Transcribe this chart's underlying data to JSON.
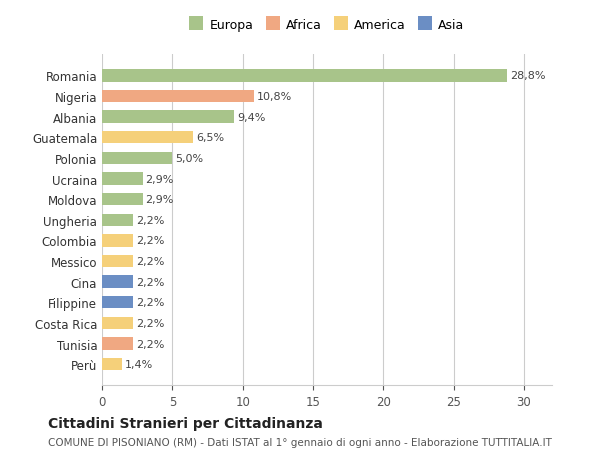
{
  "countries": [
    "Romania",
    "Nigeria",
    "Albania",
    "Guatemala",
    "Polonia",
    "Ucraina",
    "Moldova",
    "Ungheria",
    "Colombia",
    "Messico",
    "Cina",
    "Filippine",
    "Costa Rica",
    "Tunisia",
    "Perù"
  ],
  "values": [
    28.8,
    10.8,
    9.4,
    6.5,
    5.0,
    2.9,
    2.9,
    2.2,
    2.2,
    2.2,
    2.2,
    2.2,
    2.2,
    2.2,
    1.4
  ],
  "labels": [
    "28,8%",
    "10,8%",
    "9,4%",
    "6,5%",
    "5,0%",
    "2,9%",
    "2,9%",
    "2,2%",
    "2,2%",
    "2,2%",
    "2,2%",
    "2,2%",
    "2,2%",
    "2,2%",
    "1,4%"
  ],
  "continents": [
    "Europa",
    "Africa",
    "Europa",
    "America",
    "Europa",
    "Europa",
    "Europa",
    "Europa",
    "America",
    "America",
    "Asia",
    "Asia",
    "America",
    "Africa",
    "America"
  ],
  "continent_colors": {
    "Europa": "#a8c48a",
    "Africa": "#f0a882",
    "America": "#f5d07a",
    "Asia": "#6b8ec4"
  },
  "legend_order": [
    "Europa",
    "Africa",
    "America",
    "Asia"
  ],
  "title": "Cittadini Stranieri per Cittadinanza",
  "subtitle": "COMUNE DI PISONIANO (RM) - Dati ISTAT al 1° gennaio di ogni anno - Elaborazione TUTTITALIA.IT",
  "xlim": [
    0,
    32
  ],
  "xticks": [
    0,
    5,
    10,
    15,
    20,
    25,
    30
  ],
  "background_color": "#ffffff",
  "grid_color": "#cccccc",
  "bar_height": 0.6
}
